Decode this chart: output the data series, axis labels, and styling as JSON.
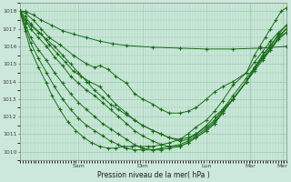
{
  "bg_color": "#cce8dc",
  "grid_color": "#99ccaa",
  "line_color": "#1a6e1a",
  "marker_color": "#1a6e1a",
  "xlabel": "Pression niveau de la mer( hPa )",
  "ylim": [
    1009.5,
    1018.5
  ],
  "yticks": [
    1010,
    1011,
    1012,
    1013,
    1014,
    1015,
    1016,
    1017,
    1018
  ],
  "day_labels": [
    "Sam",
    "Dim",
    "Lun",
    "Mar",
    "Mer"
  ],
  "day_positions": [
    0.22,
    0.46,
    0.7,
    0.865,
    0.985
  ],
  "xlim": [
    0,
    1.0
  ],
  "series": [
    {
      "x": [
        0.0,
        0.02,
        0.05,
        0.08,
        0.12,
        0.16,
        0.2,
        0.25,
        0.3,
        0.35,
        0.4,
        0.5,
        0.6,
        0.7,
        0.8,
        0.9,
        1.0
      ],
      "y": [
        1018.0,
        1018.0,
        1017.8,
        1017.5,
        1017.2,
        1016.9,
        1016.7,
        1016.5,
        1016.3,
        1016.15,
        1016.05,
        1015.95,
        1015.9,
        1015.85,
        1015.85,
        1015.9,
        1016.0
      ],
      "markers": true
    },
    {
      "x": [
        0.0,
        0.02,
        0.05,
        0.08,
        0.11,
        0.15,
        0.2,
        0.25,
        0.28,
        0.3,
        0.33,
        0.36,
        0.4,
        0.43,
        0.46,
        0.5,
        0.53,
        0.56,
        0.6,
        0.63,
        0.66,
        0.7,
        0.73,
        0.76,
        0.8,
        0.85,
        0.88,
        0.9,
        0.92,
        0.94,
        0.96,
        0.98,
        1.0
      ],
      "y": [
        1018.0,
        1017.9,
        1017.5,
        1017.0,
        1016.5,
        1016.1,
        1015.5,
        1015.0,
        1014.8,
        1014.9,
        1014.7,
        1014.3,
        1013.9,
        1013.3,
        1013.0,
        1012.7,
        1012.4,
        1012.2,
        1012.2,
        1012.3,
        1012.5,
        1013.0,
        1013.4,
        1013.7,
        1014.0,
        1014.5,
        1015.5,
        1016.0,
        1016.5,
        1017.0,
        1017.5,
        1018.0,
        1018.2
      ],
      "markers": true
    },
    {
      "x": [
        0.0,
        0.02,
        0.04,
        0.08,
        0.11,
        0.14,
        0.17,
        0.2,
        0.23,
        0.26,
        0.3,
        0.33,
        0.36,
        0.4,
        0.43,
        0.46,
        0.5,
        0.53,
        0.56,
        0.6,
        0.63,
        0.66,
        0.7,
        0.73,
        0.76,
        0.8,
        0.85,
        0.88,
        0.91,
        0.94,
        0.97,
        1.0
      ],
      "y": [
        1018.0,
        1017.7,
        1017.3,
        1016.7,
        1016.1,
        1015.6,
        1015.1,
        1014.6,
        1014.3,
        1014.0,
        1013.7,
        1013.2,
        1012.7,
        1012.2,
        1011.8,
        1011.5,
        1011.2,
        1011.0,
        1010.8,
        1010.6,
        1010.7,
        1011.0,
        1011.5,
        1012.0,
        1012.4,
        1013.0,
        1014.0,
        1014.8,
        1015.4,
        1016.0,
        1016.7,
        1017.2
      ],
      "markers": true
    },
    {
      "x": [
        0.0,
        0.02,
        0.04,
        0.07,
        0.1,
        0.13,
        0.16,
        0.19,
        0.22,
        0.25,
        0.28,
        0.31,
        0.34,
        0.37,
        0.4,
        0.43,
        0.46,
        0.5,
        0.53,
        0.56,
        0.6,
        0.63,
        0.66,
        0.7,
        0.73,
        0.76,
        0.8,
        0.85,
        0.88,
        0.91,
        0.94,
        0.97,
        1.0
      ],
      "y": [
        1018.0,
        1017.5,
        1017.0,
        1016.5,
        1016.0,
        1015.4,
        1014.9,
        1014.3,
        1013.9,
        1013.5,
        1013.2,
        1012.8,
        1012.4,
        1012.0,
        1011.6,
        1011.2,
        1010.9,
        1010.6,
        1010.4,
        1010.3,
        1010.3,
        1010.5,
        1010.8,
        1011.2,
        1011.6,
        1012.2,
        1013.0,
        1014.0,
        1014.8,
        1015.5,
        1016.1,
        1016.6,
        1017.0
      ],
      "markers": true
    },
    {
      "x": [
        0.0,
        0.02,
        0.04,
        0.07,
        0.1,
        0.13,
        0.16,
        0.19,
        0.22,
        0.25,
        0.28,
        0.31,
        0.34,
        0.37,
        0.4,
        0.43,
        0.46,
        0.5,
        0.53,
        0.56,
        0.6,
        0.63,
        0.66,
        0.7,
        0.73,
        0.76,
        0.8,
        0.85,
        0.88,
        0.91,
        0.94,
        0.97,
        1.0
      ],
      "y": [
        1018.0,
        1017.3,
        1016.5,
        1015.8,
        1015.2,
        1014.5,
        1013.9,
        1013.3,
        1012.8,
        1012.4,
        1012.0,
        1011.6,
        1011.3,
        1011.0,
        1010.7,
        1010.4,
        1010.2,
        1010.1,
        1010.1,
        1010.2,
        1010.3,
        1010.5,
        1010.8,
        1011.2,
        1011.6,
        1012.2,
        1013.0,
        1014.0,
        1014.7,
        1015.3,
        1015.9,
        1016.5,
        1016.8
      ],
      "markers": true
    },
    {
      "x": [
        0.0,
        0.02,
        0.04,
        0.07,
        0.1,
        0.13,
        0.16,
        0.19,
        0.22,
        0.25,
        0.28,
        0.31,
        0.34,
        0.37,
        0.4,
        0.43,
        0.46,
        0.5,
        0.53,
        0.56,
        0.6,
        0.63,
        0.66,
        0.7,
        0.73,
        0.76,
        0.8,
        0.85,
        0.88,
        0.91,
        0.94,
        0.97,
        1.0
      ],
      "y": [
        1018.0,
        1017.1,
        1016.2,
        1015.3,
        1014.5,
        1013.7,
        1013.0,
        1012.4,
        1011.9,
        1011.5,
        1011.2,
        1010.9,
        1010.6,
        1010.4,
        1010.2,
        1010.1,
        1010.1,
        1010.1,
        1010.2,
        1010.3,
        1010.4,
        1010.6,
        1010.9,
        1011.3,
        1011.7,
        1012.3,
        1013.0,
        1014.0,
        1014.6,
        1015.2,
        1015.8,
        1016.5,
        1017.0
      ],
      "markers": true
    },
    {
      "x": [
        0.0,
        0.02,
        0.04,
        0.07,
        0.1,
        0.12,
        0.15,
        0.18,
        0.21,
        0.24,
        0.27,
        0.3,
        0.33,
        0.36,
        0.39,
        0.42,
        0.45,
        0.48,
        0.5,
        0.53,
        0.56,
        0.6,
        0.63,
        0.66,
        0.7,
        0.73,
        0.76,
        0.8,
        0.85,
        0.88,
        0.91,
        0.94,
        0.97,
        1.0
      ],
      "y": [
        1018.0,
        1016.9,
        1015.8,
        1014.8,
        1013.9,
        1013.2,
        1012.4,
        1011.7,
        1011.2,
        1010.8,
        1010.5,
        1010.3,
        1010.2,
        1010.2,
        1010.3,
        1010.3,
        1010.3,
        1010.3,
        1010.3,
        1010.4,
        1010.5,
        1010.7,
        1011.0,
        1011.4,
        1011.8,
        1012.3,
        1012.9,
        1013.8,
        1014.5,
        1015.1,
        1015.7,
        1016.3,
        1016.8,
        1017.2
      ],
      "markers": true
    },
    {
      "x": [
        0.0,
        0.02,
        0.04,
        0.07,
        0.1,
        0.13,
        0.16,
        0.19,
        0.22,
        0.25,
        0.28,
        0.31,
        0.34,
        0.37,
        0.4,
        0.43,
        0.46,
        0.5,
        0.53,
        0.56,
        0.6,
        0.63,
        0.66,
        0.7,
        0.73,
        0.76,
        0.8,
        0.85,
        0.88,
        0.91,
        0.94,
        0.97,
        1.0
      ],
      "y": [
        1018.0,
        1017.5,
        1017.2,
        1016.8,
        1016.4,
        1016.0,
        1015.5,
        1015.0,
        1014.5,
        1014.0,
        1013.5,
        1013.1,
        1012.7,
        1012.4,
        1012.1,
        1011.8,
        1011.5,
        1011.2,
        1011.0,
        1010.8,
        1010.7,
        1010.8,
        1011.0,
        1011.4,
        1011.8,
        1012.4,
        1013.2,
        1014.2,
        1014.8,
        1015.3,
        1015.8,
        1016.4,
        1016.8
      ],
      "markers": true
    }
  ]
}
